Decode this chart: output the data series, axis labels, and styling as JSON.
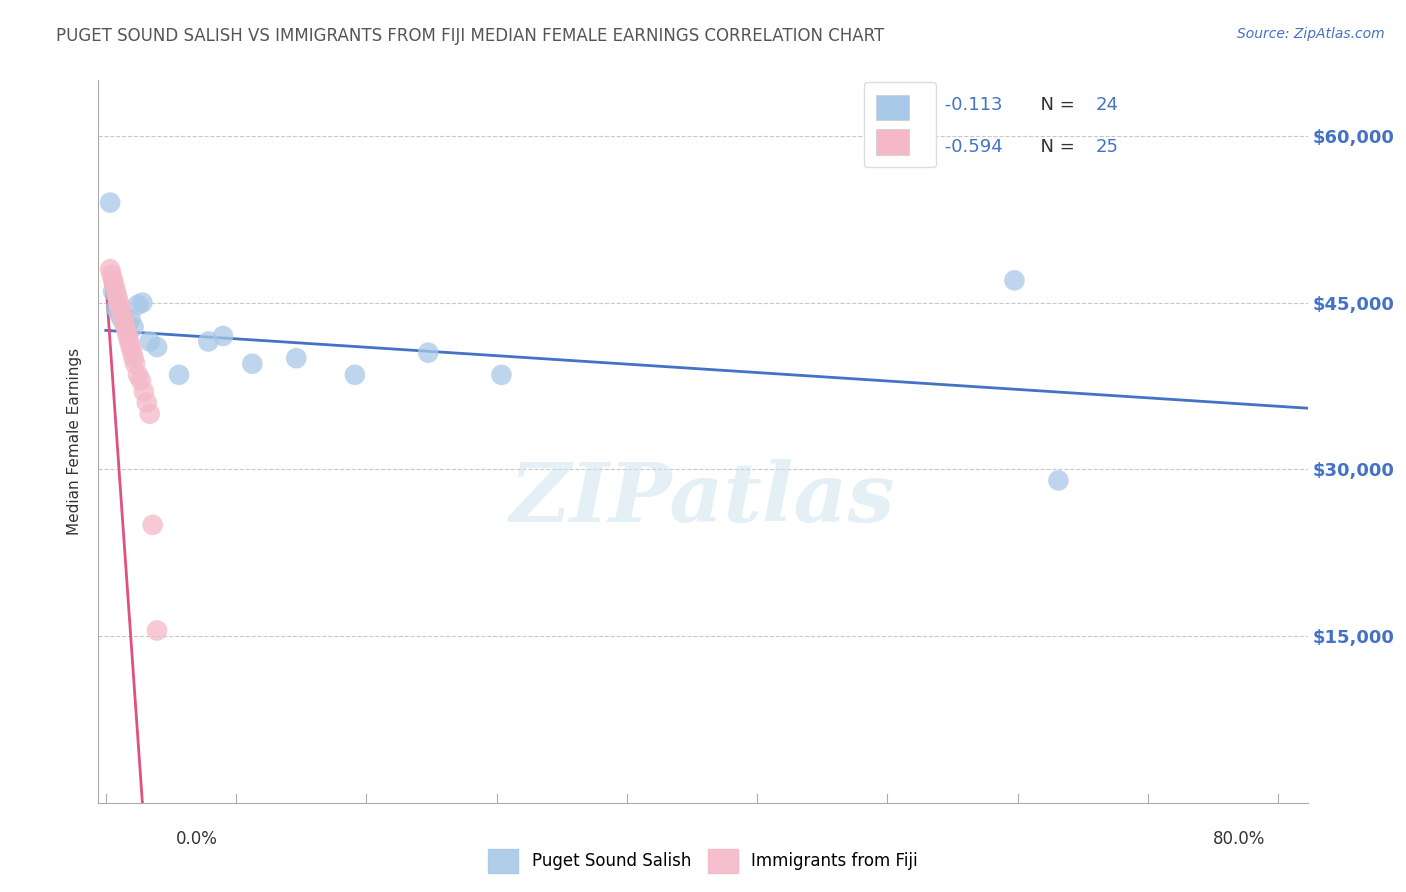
{
  "title": "PUGET SOUND SALISH VS IMMIGRANTS FROM FIJI MEDIAN FEMALE EARNINGS CORRELATION CHART",
  "source": "Source: ZipAtlas.com",
  "ylabel": "Median Female Earnings",
  "watermark": "ZIPatlas",
  "legend_label1": "Puget Sound Salish",
  "legend_label2": "Immigrants from Fiji",
  "R1": "-0.113",
  "N1": "24",
  "R2": "-0.594",
  "N2": "25",
  "color1": "#a8c8e8",
  "color2": "#f4b8c8",
  "trendline1_color": "#4472c4",
  "trendline2_color": "#e05080",
  "ylim": [
    0,
    65000
  ],
  "xlim": [
    -0.005,
    0.82
  ],
  "yticks": [
    0,
    15000,
    30000,
    45000,
    60000
  ],
  "ytick_labels": [
    "",
    "$15,000",
    "$30,000",
    "$45,000",
    "$60,000"
  ],
  "xtick_left": "0.0%",
  "xtick_right": "80.0%",
  "blue_x": [
    0.003,
    0.005,
    0.007,
    0.009,
    0.011,
    0.012,
    0.013,
    0.015,
    0.017,
    0.019,
    0.022,
    0.025,
    0.03,
    0.035,
    0.05,
    0.07,
    0.08,
    0.1,
    0.13,
    0.17,
    0.22,
    0.27,
    0.62,
    0.65
  ],
  "blue_y": [
    54000,
    46000,
    44500,
    44000,
    43500,
    43800,
    43200,
    43000,
    43500,
    42800,
    44800,
    45000,
    41500,
    41000,
    38500,
    41500,
    42000,
    39500,
    40000,
    38500,
    40500,
    38500,
    47000,
    29000
  ],
  "pink_x": [
    0.003,
    0.004,
    0.005,
    0.006,
    0.007,
    0.008,
    0.009,
    0.01,
    0.011,
    0.012,
    0.013,
    0.014,
    0.015,
    0.016,
    0.017,
    0.018,
    0.019,
    0.02,
    0.022,
    0.024,
    0.026,
    0.028,
    0.03,
    0.032,
    0.035
  ],
  "pink_y": [
    48000,
    47500,
    47000,
    46500,
    46000,
    45500,
    45000,
    44500,
    44000,
    43500,
    43000,
    42500,
    42000,
    41500,
    41000,
    40500,
    40000,
    39500,
    38500,
    38000,
    37000,
    36000,
    35000,
    25000,
    15500
  ],
  "trendline1_x0": 0.0,
  "trendline1_x1": 0.82,
  "trendline1_y0": 42500,
  "trendline1_y1": 35500,
  "trendline2_x0": 0.0,
  "trendline2_x1": 0.025,
  "trendline2_y0": 47000,
  "trendline2_y1": 0,
  "background_color": "#ffffff",
  "grid_color": "#c8c8c8"
}
